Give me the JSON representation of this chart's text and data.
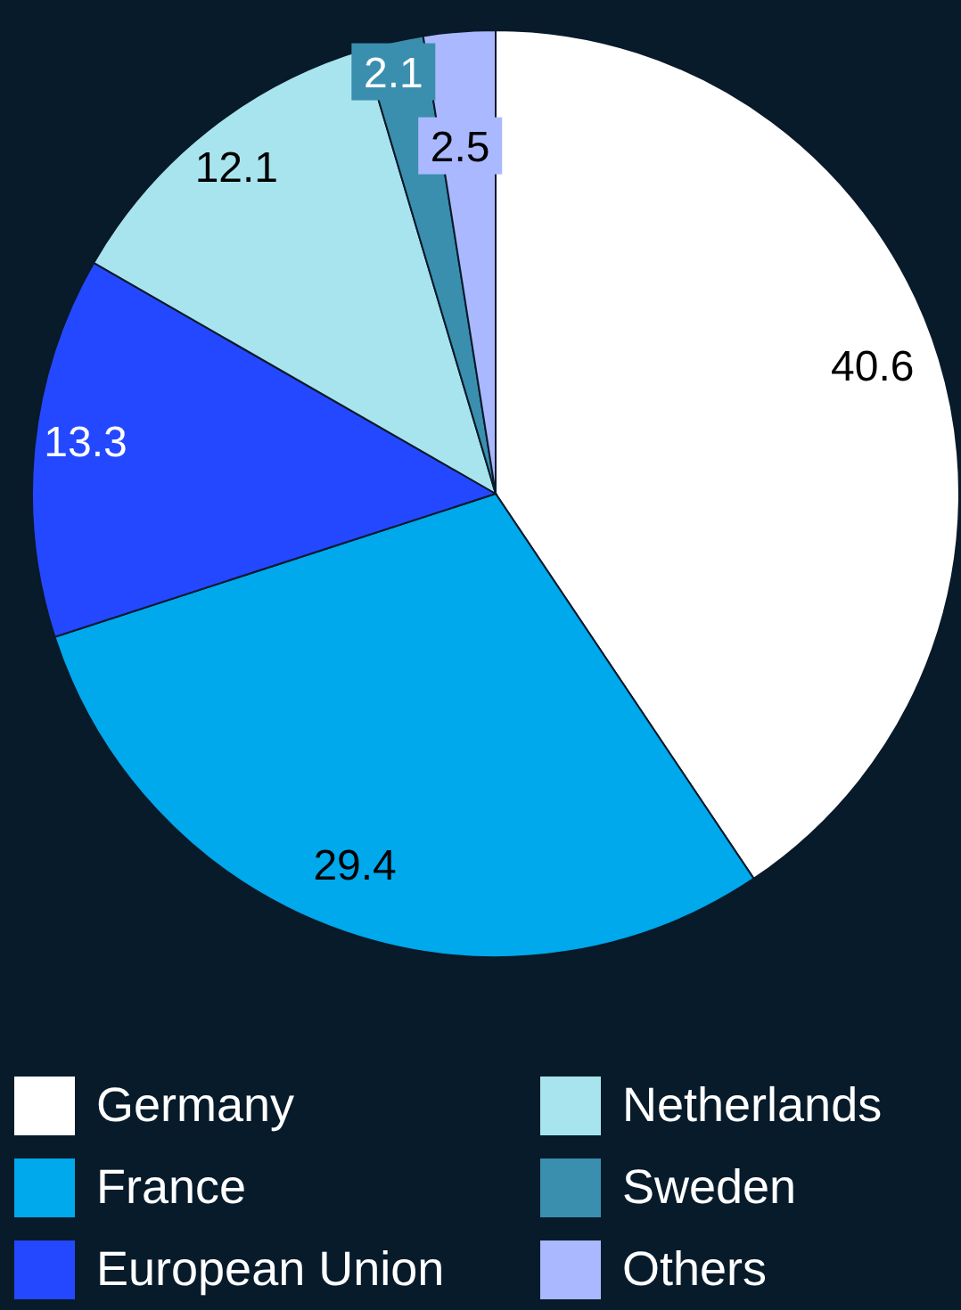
{
  "chart_data": {
    "type": "pie",
    "categories": [
      "Germany",
      "France",
      "European Union",
      "Netherlands",
      "Sweden",
      "Others"
    ],
    "values": [
      40.6,
      29.4,
      13.3,
      12.1,
      2.1,
      2.5
    ],
    "colors": [
      "#ffffff",
      "#00a8ec",
      "#2448ff",
      "#a8e4ee",
      "#3a8fae",
      "#aab8ff"
    ],
    "data_labels": true,
    "legend": "bottom"
  }
}
